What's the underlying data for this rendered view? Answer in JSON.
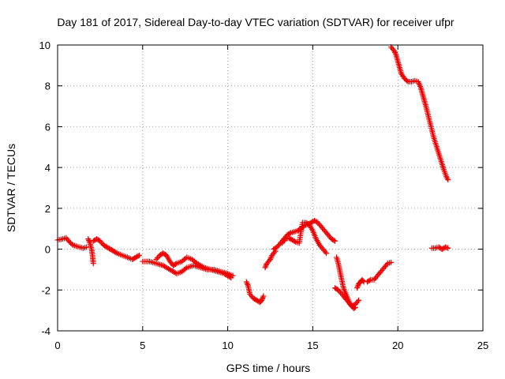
{
  "chart_data": {
    "type": "scatter",
    "title": "Day 181 of 2017, Sidereal Day-to-day VTEC variation (SDTVAR) for receiver ufpr",
    "xlabel": "GPS time / hours",
    "ylabel": "SDTVAR / TECUs",
    "xlim": [
      0,
      25
    ],
    "ylim": [
      -4,
      10
    ],
    "xticks": [
      "0",
      "5",
      "10",
      "15",
      "20",
      "25"
    ],
    "yticks": [
      "-4",
      "-2",
      "0",
      "2",
      "4",
      "6",
      "8",
      "10"
    ],
    "grid": true,
    "marker": "plus",
    "color": "#ee0000",
    "series": [
      {
        "name": "SDTVAR",
        "segments": [
          [
            [
              0.0,
              0.45
            ],
            [
              0.3,
              0.5
            ],
            [
              0.5,
              0.55
            ],
            [
              0.7,
              0.35
            ],
            [
              0.9,
              0.2
            ],
            [
              1.1,
              0.15
            ],
            [
              1.3,
              0.1
            ],
            [
              1.5,
              0.05
            ],
            [
              1.7,
              0.1
            ]
          ],
          [
            [
              1.8,
              0.5
            ],
            [
              1.9,
              0.3
            ],
            [
              2.0,
              0.0
            ],
            [
              2.05,
              -0.3
            ],
            [
              2.1,
              -0.7
            ]
          ],
          [
            [
              2.1,
              0.4
            ],
            [
              2.3,
              0.5
            ],
            [
              2.5,
              0.4
            ],
            [
              2.7,
              0.2
            ],
            [
              2.9,
              0.1
            ],
            [
              3.1,
              0.0
            ],
            [
              3.3,
              -0.1
            ],
            [
              3.5,
              -0.2
            ],
            [
              3.8,
              -0.3
            ],
            [
              4.1,
              -0.4
            ],
            [
              4.4,
              -0.5
            ],
            [
              4.6,
              -0.4
            ],
            [
              4.8,
              -0.3
            ]
          ],
          [
            [
              5.0,
              -0.6
            ],
            [
              5.4,
              -0.6
            ],
            [
              5.8,
              -0.7
            ],
            [
              6.2,
              -0.8
            ],
            [
              6.6,
              -1.0
            ],
            [
              7.0,
              -1.2
            ],
            [
              7.3,
              -1.1
            ],
            [
              7.6,
              -0.9
            ],
            [
              8.0,
              -0.8
            ],
            [
              8.4,
              -0.9
            ],
            [
              8.8,
              -1.0
            ],
            [
              9.2,
              -1.0
            ],
            [
              9.6,
              -1.1
            ],
            [
              10.0,
              -1.2
            ],
            [
              10.3,
              -1.3
            ]
          ],
          [
            [
              5.8,
              -0.5
            ],
            [
              6.0,
              -0.3
            ],
            [
              6.2,
              -0.2
            ],
            [
              6.4,
              -0.3
            ],
            [
              6.6,
              -0.6
            ],
            [
              6.8,
              -0.8
            ],
            [
              7.0,
              -0.7
            ],
            [
              7.3,
              -0.6
            ],
            [
              7.6,
              -0.4
            ],
            [
              7.9,
              -0.5
            ],
            [
              8.2,
              -0.7
            ],
            [
              8.6,
              -0.9
            ],
            [
              9.0,
              -1.0
            ],
            [
              9.4,
              -1.1
            ],
            [
              9.8,
              -1.2
            ],
            [
              10.0,
              -1.3
            ],
            [
              10.2,
              -1.4
            ]
          ],
          [
            [
              11.1,
              -1.6
            ],
            [
              11.2,
              -1.8
            ],
            [
              11.3,
              -2.2
            ],
            [
              11.5,
              -2.4
            ],
            [
              11.7,
              -2.5
            ],
            [
              11.9,
              -2.6
            ],
            [
              12.0,
              -2.5
            ],
            [
              12.1,
              -2.3
            ]
          ],
          [
            [
              12.2,
              -0.9
            ],
            [
              12.3,
              -0.7
            ],
            [
              12.5,
              -0.5
            ],
            [
              12.6,
              -0.3
            ],
            [
              12.8,
              -0.1
            ]
          ],
          [
            [
              12.7,
              0.0
            ],
            [
              12.9,
              0.1
            ],
            [
              13.1,
              0.3
            ],
            [
              13.3,
              0.5
            ],
            [
              13.5,
              0.7
            ],
            [
              13.7,
              0.8
            ],
            [
              13.9,
              0.85
            ],
            [
              14.1,
              0.9
            ],
            [
              14.3,
              1.0
            ],
            [
              14.5,
              1.15
            ],
            [
              14.7,
              1.2
            ],
            [
              14.9,
              1.3
            ],
            [
              15.1,
              1.4
            ],
            [
              15.3,
              1.3
            ],
            [
              15.5,
              1.1
            ],
            [
              15.7,
              0.9
            ],
            [
              15.9,
              0.7
            ],
            [
              16.1,
              0.5
            ],
            [
              16.3,
              0.4
            ]
          ],
          [
            [
              13.2,
              0.3
            ],
            [
              13.4,
              0.5
            ],
            [
              13.6,
              0.55
            ],
            [
              13.8,
              0.45
            ],
            [
              14.0,
              0.35
            ],
            [
              14.2,
              0.3
            ],
            [
              14.4,
              1.3
            ],
            [
              14.6,
              1.3
            ],
            [
              14.8,
              1.2
            ],
            [
              15.0,
              0.9
            ],
            [
              15.2,
              0.5
            ],
            [
              15.4,
              0.2
            ],
            [
              15.6,
              0.0
            ],
            [
              15.8,
              -0.2
            ]
          ],
          [
            [
              16.4,
              -0.4
            ],
            [
              16.5,
              -0.7
            ],
            [
              16.6,
              -1.1
            ],
            [
              16.7,
              -1.5
            ],
            [
              16.8,
              -1.9
            ],
            [
              17.0,
              -2.3
            ],
            [
              17.2,
              -2.7
            ],
            [
              17.4,
              -2.9
            ],
            [
              17.5,
              -2.85
            ]
          ],
          [
            [
              16.3,
              -1.9
            ],
            [
              16.5,
              -2.0
            ],
            [
              16.7,
              -2.2
            ],
            [
              16.9,
              -2.4
            ],
            [
              17.1,
              -2.6
            ],
            [
              17.3,
              -2.8
            ],
            [
              17.5,
              -2.7
            ],
            [
              17.7,
              -2.5
            ]
          ],
          [
            [
              17.6,
              -1.9
            ],
            [
              17.7,
              -1.7
            ],
            [
              17.8,
              -1.6
            ],
            [
              17.9,
              -1.5
            ],
            [
              18.0,
              -1.6
            ]
          ],
          [
            [
              18.2,
              -1.6
            ],
            [
              18.4,
              -1.5
            ],
            [
              18.6,
              -1.5
            ],
            [
              18.8,
              -1.3
            ],
            [
              19.0,
              -1.1
            ],
            [
              19.2,
              -0.9
            ],
            [
              19.4,
              -0.7
            ],
            [
              19.6,
              -0.65
            ]
          ],
          [
            [
              19.6,
              9.9
            ],
            [
              19.8,
              9.7
            ],
            [
              19.9,
              9.5
            ],
            [
              20.0,
              9.2
            ],
            [
              20.1,
              8.9
            ],
            [
              20.2,
              8.6
            ],
            [
              20.4,
              8.35
            ],
            [
              20.6,
              8.2
            ],
            [
              20.8,
              8.2
            ],
            [
              21.0,
              8.25
            ],
            [
              21.2,
              8.2
            ],
            [
              21.35,
              7.9
            ],
            [
              21.45,
              7.6
            ],
            [
              21.55,
              7.3
            ],
            [
              21.65,
              7.0
            ],
            [
              21.8,
              6.5
            ],
            [
              21.95,
              6.0
            ],
            [
              22.1,
              5.5
            ],
            [
              22.25,
              5.1
            ],
            [
              22.4,
              4.7
            ],
            [
              22.55,
              4.3
            ],
            [
              22.7,
              3.9
            ],
            [
              22.85,
              3.55
            ],
            [
              22.95,
              3.4
            ]
          ],
          [
            [
              22.0,
              0.05
            ],
            [
              22.2,
              0.05
            ],
            [
              22.4,
              0.1
            ],
            [
              22.6,
              0.0
            ],
            [
              22.8,
              0.1
            ],
            [
              22.95,
              0.05
            ]
          ]
        ]
      }
    ]
  }
}
